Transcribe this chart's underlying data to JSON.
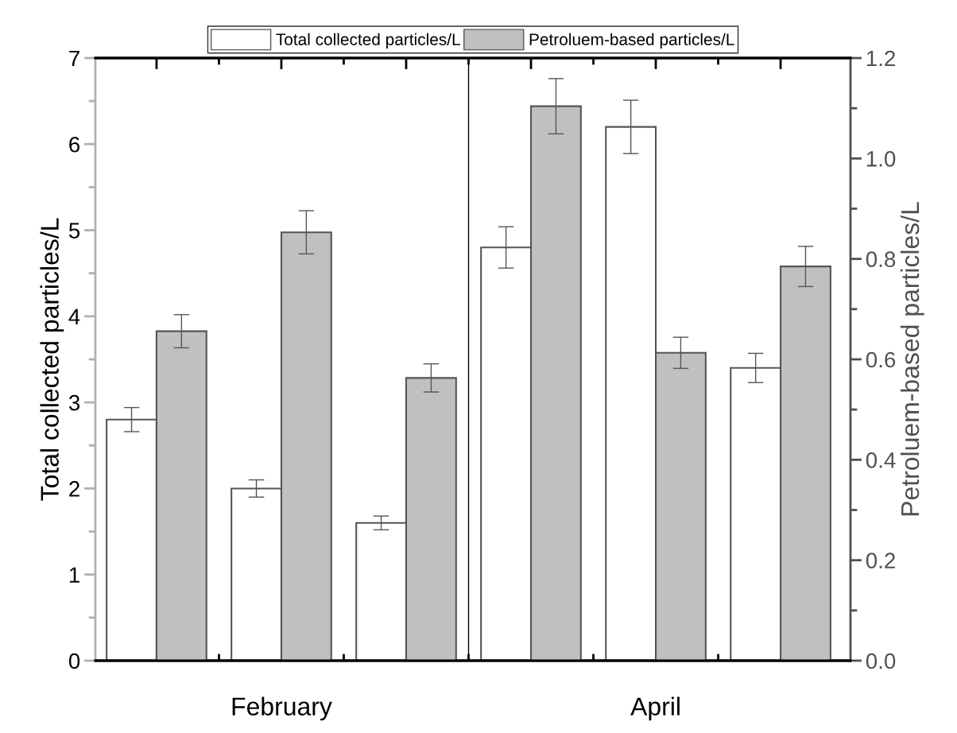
{
  "chart_data": {
    "type": "bar",
    "categories": [
      null,
      null,
      null,
      null,
      null,
      null
    ],
    "series": [
      {
        "name": "Total collected particles/L",
        "color": "#ffffff",
        "values": [
          2.8,
          2.0,
          1.6,
          4.8,
          6.2,
          3.4
        ],
        "errors": [
          0.14,
          0.1,
          0.08,
          0.24,
          0.31,
          0.17
        ]
      },
      {
        "name": "Petroluem-based particles/L",
        "color": "#c0c0c0",
        "axis": "y2",
        "values": [
          0.656,
          0.853,
          0.563,
          1.104,
          0.613,
          0.785
        ],
        "errors": [
          0.033,
          0.043,
          0.028,
          0.055,
          0.031,
          0.04
        ]
      }
    ],
    "ylabel": "Total collected particles/L",
    "y2label": "Petroluem-based particles/L",
    "ylim": [
      0,
      7
    ],
    "yticks": [
      0,
      1,
      2,
      3,
      4,
      5,
      6,
      7
    ],
    "y2lim": [
      0,
      1.2
    ],
    "y2ticks": [
      {
        "value": 0,
        "label": "0.0"
      },
      {
        "value": 0.2,
        "label": "0.2"
      },
      {
        "value": 0.4,
        "label": "0.4"
      },
      {
        "value": 0.6,
        "label": "0.6"
      },
      {
        "value": 0.8,
        "label": "0.8"
      },
      {
        "value": 1.0,
        "label": "1.0"
      },
      {
        "value": 1.2,
        "label": "1.2"
      }
    ],
    "annotations": [
      "February",
      "April"
    ],
    "legend": "top",
    "grid": false
  }
}
